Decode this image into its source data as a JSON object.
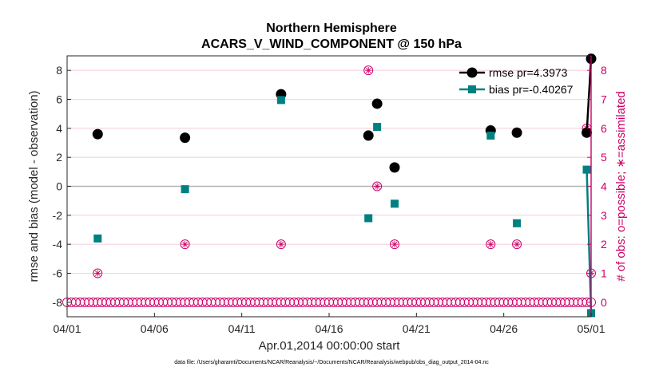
{
  "title_line1": "Northern Hemisphere",
  "title_line2": "ACARS_V_WIND_COMPONENT @ 150 hPa",
  "footnote": "data file: /Users/gharamti/Documents/NCAR/Reanalysis/~/Documents/NCAR/Reanalysis/webpub/obs_diag_output_2014-04.nc",
  "chart_data": {
    "type": "scatter",
    "title": "Northern Hemisphere ACARS_V_WIND_COMPONENT @ 150 hPa",
    "xlabel": "Apr.01,2014 00:00:00 start",
    "ylabel_left": "rmse and bias (model - observation)",
    "ylabel_right": "# of obs: o=possible; ∗=assimilated",
    "xlim": [
      1,
      31
    ],
    "ylim_left": [
      -9,
      9
    ],
    "ylim_right": [
      -0.5,
      8.5
    ],
    "x_tick_positions": [
      1,
      6,
      11,
      16,
      21,
      26,
      31
    ],
    "x_tick_labels": [
      "04/01",
      "04/06",
      "04/11",
      "04/16",
      "04/21",
      "04/26",
      "05/01"
    ],
    "y_left_ticks": [
      -8,
      -6,
      -4,
      -2,
      0,
      2,
      4,
      6,
      8
    ],
    "y_right_ticks": [
      0,
      1,
      2,
      3,
      4,
      5,
      6,
      7,
      8
    ],
    "legend_location": "top-right",
    "series": [
      {
        "name": "rmse pr=4.3973",
        "axis": "left",
        "color": "#000000",
        "marker": "circle",
        "points": [
          [
            2.75,
            3.6
          ],
          [
            7.75,
            3.35
          ],
          [
            13.25,
            6.35
          ],
          [
            18.25,
            3.5
          ],
          [
            18.75,
            5.7
          ],
          [
            19.75,
            1.3
          ],
          [
            25.25,
            3.85
          ],
          [
            26.75,
            3.7
          ],
          [
            30.75,
            3.7
          ],
          [
            31.0,
            8.8
          ]
        ]
      },
      {
        "name": "bias pr=-0.40267",
        "axis": "left",
        "color": "#008080",
        "marker": "square",
        "points": [
          [
            2.75,
            -3.6
          ],
          [
            7.75,
            -0.2
          ],
          [
            13.25,
            5.95
          ],
          [
            18.25,
            -2.2
          ],
          [
            18.75,
            4.1
          ],
          [
            19.75,
            -1.2
          ],
          [
            25.25,
            3.5
          ],
          [
            26.75,
            -2.55
          ],
          [
            30.75,
            1.15
          ],
          [
            31.0,
            -8.75
          ]
        ]
      },
      {
        "name": "obs possible / assimilated",
        "axis": "right",
        "color": "#cc0066",
        "marker": "circle-star",
        "points": [
          [
            2.75,
            1
          ],
          [
            7.75,
            2
          ],
          [
            13.25,
            2
          ],
          [
            18.25,
            8
          ],
          [
            18.75,
            4
          ],
          [
            19.75,
            2
          ],
          [
            25.25,
            2
          ],
          [
            26.75,
            2
          ],
          [
            30.75,
            6
          ],
          [
            31.0,
            1
          ]
        ]
      }
    ],
    "zero_obs_x_start": 1.0,
    "zero_obs_x_end": 31.0,
    "zero_obs_step": 0.25
  }
}
